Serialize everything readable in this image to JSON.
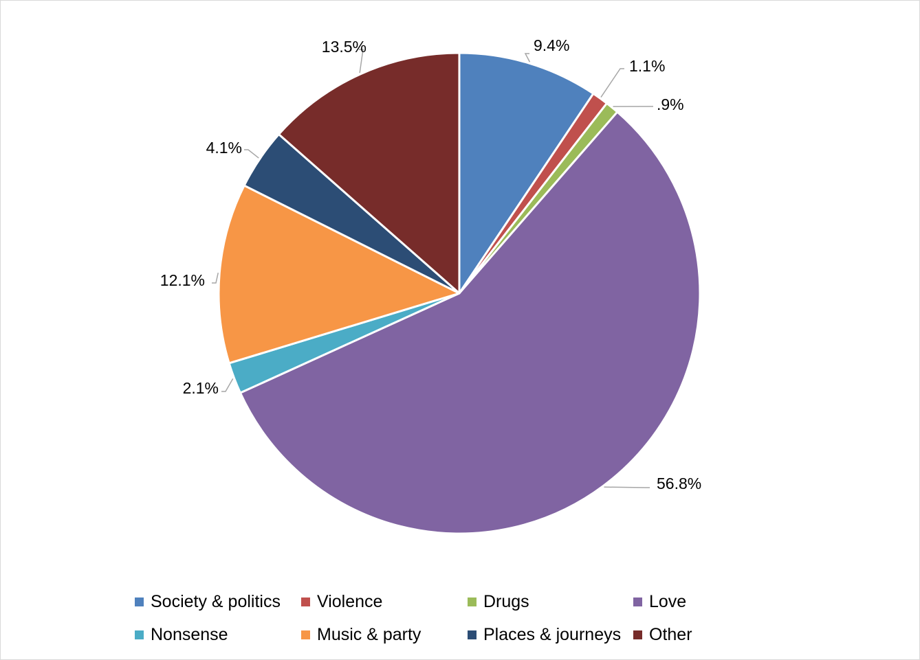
{
  "chart_data": {
    "type": "pie",
    "slices": [
      {
        "name": "Society & politics",
        "value": 9.4,
        "label": "9.4%",
        "color": "#4f81bd"
      },
      {
        "name": "Violence",
        "value": 1.1,
        "label": "1.1%",
        "color": "#c0504d"
      },
      {
        "name": "Drugs",
        "value": 0.9,
        "label": ".9%",
        "color": "#9bbb59"
      },
      {
        "name": "Love",
        "value": 56.8,
        "label": "56.8%",
        "color": "#8064a2"
      },
      {
        "name": "Nonsense",
        "value": 2.1,
        "label": "2.1%",
        "color": "#4bacc6"
      },
      {
        "name": "Music & party",
        "value": 12.1,
        "label": "12.1%",
        "color": "#f79646"
      },
      {
        "name": "Places & journeys",
        "value": 4.1,
        "label": "4.1%",
        "color": "#2c4d75"
      },
      {
        "name": "Other",
        "value": 13.5,
        "label": "13.5%",
        "color": "#772c2a"
      }
    ],
    "legend_position": "bottom",
    "start_angle": "12 o'clock",
    "direction": "clockwise"
  }
}
